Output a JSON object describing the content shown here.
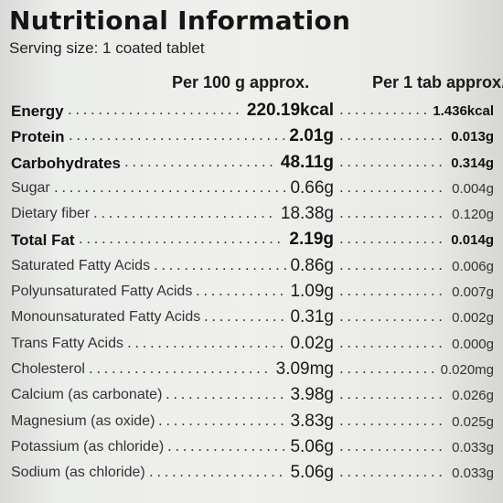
{
  "title": "Nutritional Information",
  "serving": "Serving size: 1 coated tablet",
  "columns": {
    "per100": "Per 100 g approx.",
    "per1": "Per 1 tab approx."
  },
  "rows": [
    {
      "name": "Energy",
      "per100": "220.19kcal",
      "per1": "1.436kcal",
      "bold": true
    },
    {
      "name": "Protein",
      "per100": "2.01g",
      "per1": "0.013g",
      "bold": true
    },
    {
      "name": "Carbohydrates",
      "per100": "48.11g",
      "per1": "0.314g",
      "bold": true
    },
    {
      "name": "Sugar",
      "per100": "0.66g",
      "per1": "0.004g",
      "bold": false
    },
    {
      "name": "Dietary fiber",
      "per100": "18.38g",
      "per1": "0.120g",
      "bold": false
    },
    {
      "name": "Total Fat",
      "per100": "2.19g",
      "per1": "0.014g",
      "bold": true
    },
    {
      "name": "Saturated Fatty Acids",
      "per100": "0.86g",
      "per1": "0.006g",
      "bold": false
    },
    {
      "name": "Polyunsaturated Fatty Acids",
      "per100": "1.09g",
      "per1": "0.007g",
      "bold": false
    },
    {
      "name": "Monounsaturated Fatty Acids",
      "per100": "0.31g",
      "per1": "0.002g",
      "bold": false
    },
    {
      "name": "Trans Fatty Acids",
      "per100": "0.02g",
      "per1": "0.000g",
      "bold": false
    },
    {
      "name": "Cholesterol",
      "per100": "3.09mg",
      "per1": "0.020mg",
      "bold": false
    },
    {
      "name": "Calcium (as carbonate)",
      "per100": "3.98g",
      "per1": "0.026g",
      "bold": false
    },
    {
      "name": "Magnesium (as oxide)",
      "per100": "3.83g",
      "per1": "0.025g",
      "bold": false
    },
    {
      "name": "Potassium (as chloride)",
      "per100": "5.06g",
      "per1": "0.033g",
      "bold": false
    },
    {
      "name": "Sodium (as chloride)",
      "per100": "5.06g",
      "per1": "0.033g",
      "bold": false
    }
  ]
}
